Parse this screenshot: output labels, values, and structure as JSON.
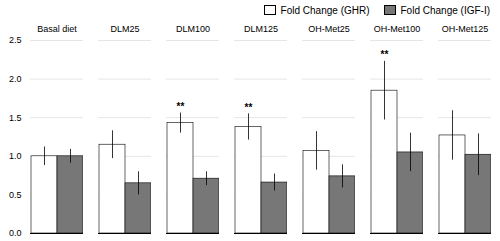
{
  "chart_data": {
    "type": "bar",
    "categories": [
      "Basal diet",
      "DLM25",
      "DLM100",
      "DLM125",
      "OH-Met25",
      "OH-Met100",
      "OH-Met125"
    ],
    "series": [
      {
        "name": "Fold Change (GHR)",
        "color": "white",
        "values": [
          1.0,
          1.15,
          1.43,
          1.38,
          1.07,
          1.85,
          1.27
        ],
        "errors": [
          0.12,
          0.18,
          0.13,
          0.17,
          0.25,
          0.38,
          0.32
        ]
      },
      {
        "name": "Fold Change (IGF-I)",
        "color": "#777777",
        "values": [
          1.0,
          0.65,
          0.71,
          0.66,
          0.74,
          1.05,
          1.02
        ],
        "errors": [
          0.09,
          0.15,
          0.09,
          0.11,
          0.15,
          0.25,
          0.27
        ]
      }
    ],
    "annotations": [
      {
        "text": "**",
        "category": "DLM100",
        "series": "Fold Change (GHR)"
      },
      {
        "text": "**",
        "category": "DLM125",
        "series": "Fold Change (GHR)"
      },
      {
        "text": "**",
        "category": "OH-Met100",
        "series": "Fold Change (GHR)"
      }
    ],
    "ylim": [
      0,
      2.5
    ],
    "yticks": [
      {
        "value": 0,
        "label": "0.0"
      },
      {
        "value": 0.5,
        "label": "0.5"
      },
      {
        "value": 1.0,
        "label": "1.0"
      },
      {
        "value": 1.5,
        "label": "1.5"
      },
      {
        "value": 2.0,
        "label": "2.0"
      },
      {
        "value": 2.5,
        "label": "2.5"
      }
    ],
    "grid": true,
    "legend": "top"
  }
}
